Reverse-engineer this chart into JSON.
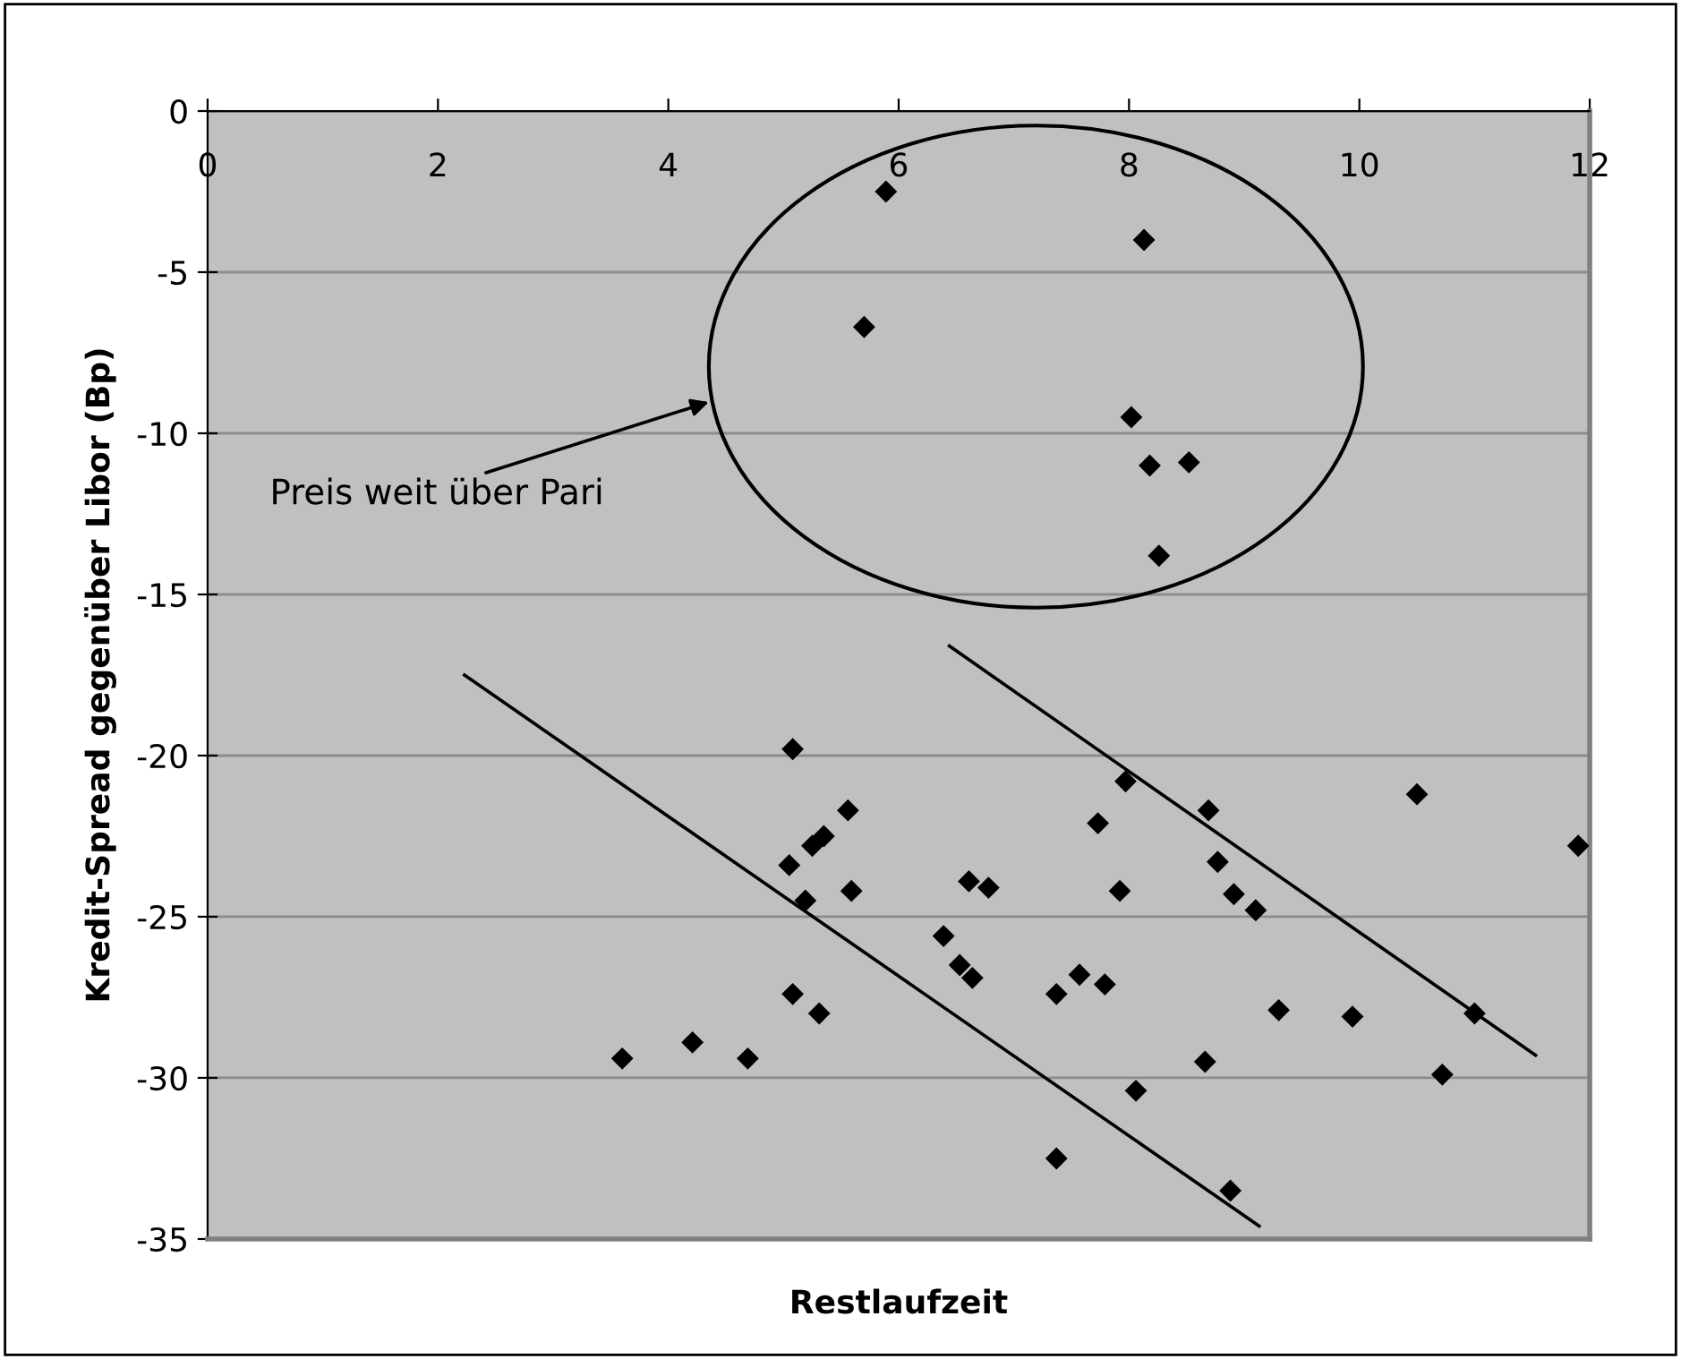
{
  "chart_data": {
    "type": "scatter",
    "xlabel": "Restlaufzeit",
    "ylabel": "Kredit-Spread gegenüber Libor (Bp)",
    "xlim": [
      0,
      12
    ],
    "xticks": [
      0,
      2,
      4,
      6,
      8,
      10,
      12
    ],
    "ylim": [
      -35,
      0
    ],
    "yticks": [
      -35,
      -30,
      -25,
      -20,
      -15,
      -10,
      -5,
      0
    ],
    "grid": "y",
    "marker": "diamond",
    "legend": false,
    "annotations": [
      "Preis weit über Pari"
    ],
    "series": [
      {
        "color": "#000000",
        "x": [
          5.89,
          8.13,
          5.7,
          8.02,
          8.18,
          8.52,
          8.26,
          5.08,
          5.56,
          5.35,
          5.25,
          5.05,
          5.19,
          5.59,
          6.61,
          6.78,
          6.39,
          6.53,
          6.64,
          5.08,
          5.31,
          3.6,
          4.21,
          4.69,
          7.37,
          7.57,
          7.79,
          7.73,
          7.92,
          7.97,
          7.37,
          8.69,
          10.5,
          11.9,
          8.77,
          8.91,
          9.1,
          9.3,
          9.94,
          11.0,
          8.66,
          8.06,
          10.72,
          8.88
        ],
        "values": [
          -2.5,
          -4.0,
          -6.7,
          -9.5,
          -11.0,
          -10.9,
          -13.8,
          -19.8,
          -21.7,
          -22.5,
          -22.8,
          -23.4,
          -24.5,
          -24.2,
          -23.9,
          -24.1,
          -25.6,
          -26.5,
          -26.9,
          -27.4,
          -28.0,
          -29.4,
          -28.9,
          -29.4,
          -27.4,
          -26.8,
          -27.1,
          -22.1,
          -24.2,
          -20.8,
          -32.5,
          -21.7,
          -21.2,
          -22.8,
          -23.3,
          -24.3,
          -24.8,
          -27.9,
          -28.1,
          -28.0,
          -29.5,
          -30.4,
          -29.9,
          -33.5
        ]
      },
      {
        "type": "line",
        "color": "#000000",
        "marker": "none",
        "x": [
          2.23,
          9.13
        ],
        "values": [
          -17.5,
          -34.6
        ]
      },
      {
        "type": "line",
        "color": "#000000",
        "marker": "none",
        "x": [
          6.44,
          11.53
        ],
        "values": [
          -16.6,
          -29.3
        ]
      }
    ]
  }
}
